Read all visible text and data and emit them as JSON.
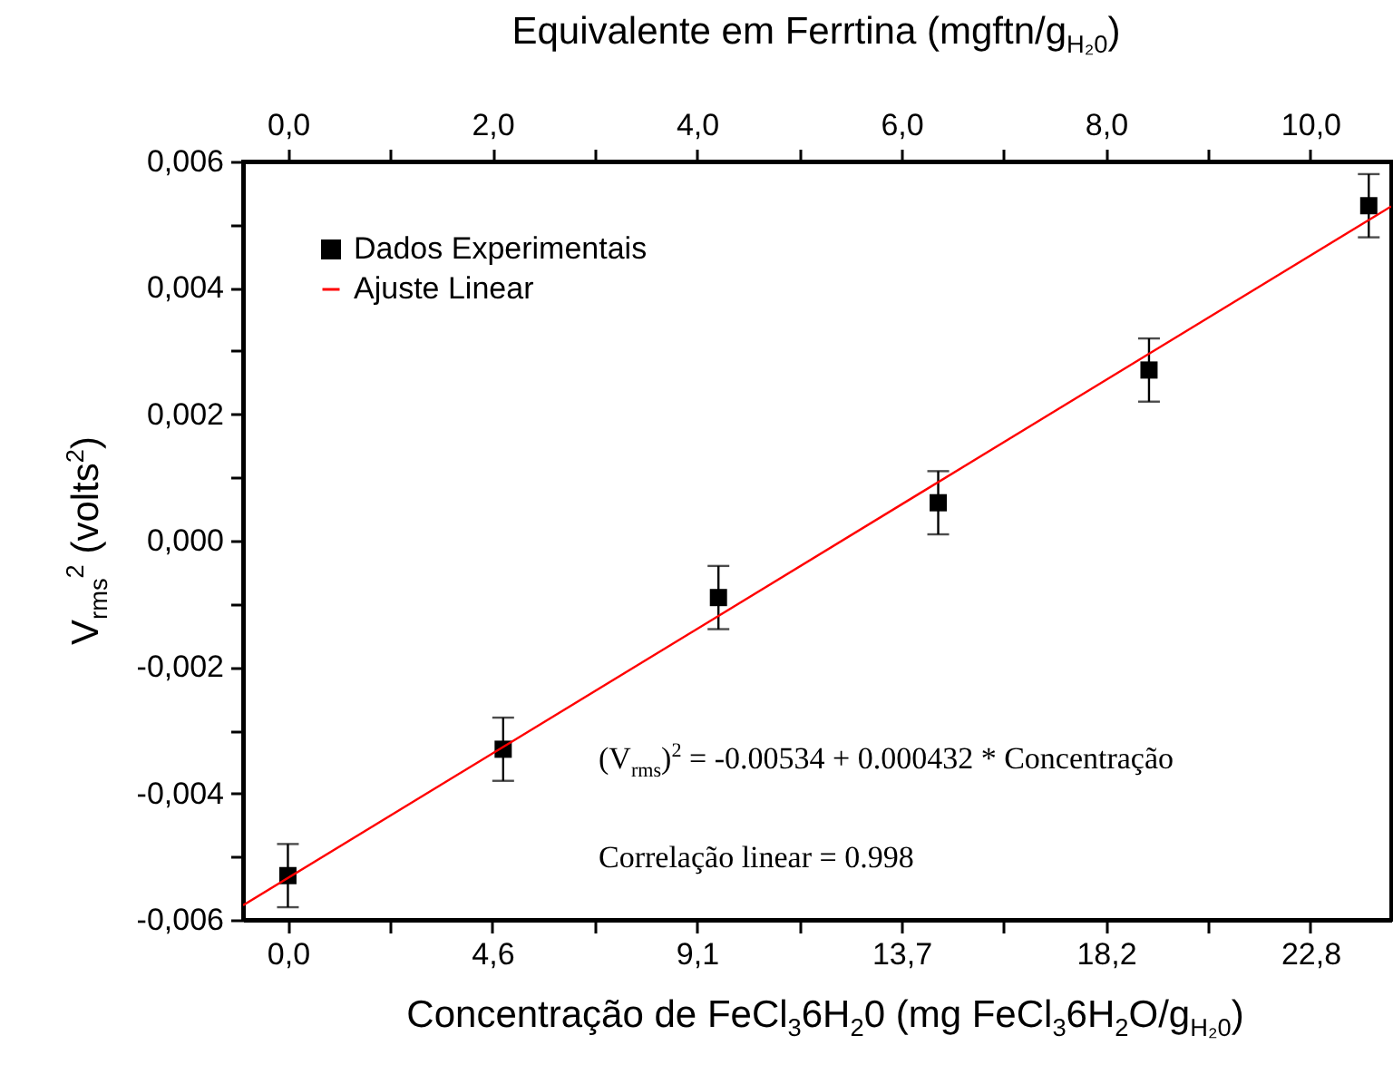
{
  "chart_data": {
    "type": "scatter",
    "xlabel": "Concentração de FeCl$_{3}$6H$_{2}$0 (mg FeCl$_{3}$6H$_{2}$O/g$_{H₂0}$)",
    "x2label": "Equivalente em Ferrtina (mgftn/g$_{H₂0}$)",
    "ylabel": "V$_{rms}$$^{2}$ (volts$^{2}$)",
    "xlim": [
      -1,
      24.6
    ],
    "xticks": [
      {
        "value": 0,
        "label": "0,0"
      },
      {
        "value": 2.28,
        "label": null
      },
      {
        "value": 4.56,
        "label": "4,6"
      },
      {
        "value": 6.84,
        "label": null
      },
      {
        "value": 9.12,
        "label": "9,1"
      },
      {
        "value": 11.4,
        "label": null
      },
      {
        "value": 13.68,
        "label": "13,7"
      },
      {
        "value": 15.96,
        "label": null
      },
      {
        "value": 18.24,
        "label": "18,2"
      },
      {
        "value": 20.52,
        "label": null
      },
      {
        "value": 22.8,
        "label": "22,8"
      }
    ],
    "x2lim": [
      -0.44,
      10.79
    ],
    "x2ticks": [
      {
        "value": 0,
        "label": "0,0"
      },
      {
        "value": 1,
        "label": null
      },
      {
        "value": 2,
        "label": "2,0"
      },
      {
        "value": 3,
        "label": null
      },
      {
        "value": 4,
        "label": "4,0"
      },
      {
        "value": 5,
        "label": null
      },
      {
        "value": 6,
        "label": "6,0"
      },
      {
        "value": 7,
        "label": null
      },
      {
        "value": 8,
        "label": "8,0"
      },
      {
        "value": 9,
        "label": null
      },
      {
        "value": 10,
        "label": "10,0"
      }
    ],
    "ylim": [
      -0.006,
      0.006
    ],
    "yticks": [
      {
        "value": -0.006,
        "label": "-0,006"
      },
      {
        "value": -0.005,
        "label": null
      },
      {
        "value": -0.004,
        "label": "-0,004"
      },
      {
        "value": -0.003,
        "label": null
      },
      {
        "value": -0.002,
        "label": "-0,002"
      },
      {
        "value": -0.001,
        "label": null
      },
      {
        "value": 0,
        "label": "0,000"
      },
      {
        "value": 0.001,
        "label": null
      },
      {
        "value": 0.002,
        "label": "0,002"
      },
      {
        "value": 0.003,
        "label": null
      },
      {
        "value": 0.004,
        "label": "0,004"
      },
      {
        "value": 0.005,
        "label": null
      },
      {
        "value": 0.006,
        "label": "0,006"
      }
    ],
    "series": [
      {
        "name": "Dados Experimentais",
        "type": "scatter",
        "marker": "square",
        "color": "#000000",
        "x": [
          0,
          4.8,
          9.6,
          14.5,
          19.2,
          24.1
        ],
        "values": [
          -0.0053,
          -0.0033,
          -0.0009,
          0.0006,
          0.0027,
          0.0053
        ],
        "errors": [
          0.0005,
          0.0005,
          0.0005,
          0.0005,
          0.0005,
          0.0005
        ]
      },
      {
        "name": "Ajuste Linear",
        "type": "line",
        "color": "#ff0000",
        "x": [
          -1,
          24.6
        ],
        "values": [
          -0.00577,
          0.00529
        ]
      }
    ],
    "legend": "top left",
    "grid": false,
    "annotations": [
      "(V$_{rms}$)$^{2}$ = -0.00534 + 0.000432 * Concentração",
      "Correlação linear = 0.998"
    ]
  }
}
